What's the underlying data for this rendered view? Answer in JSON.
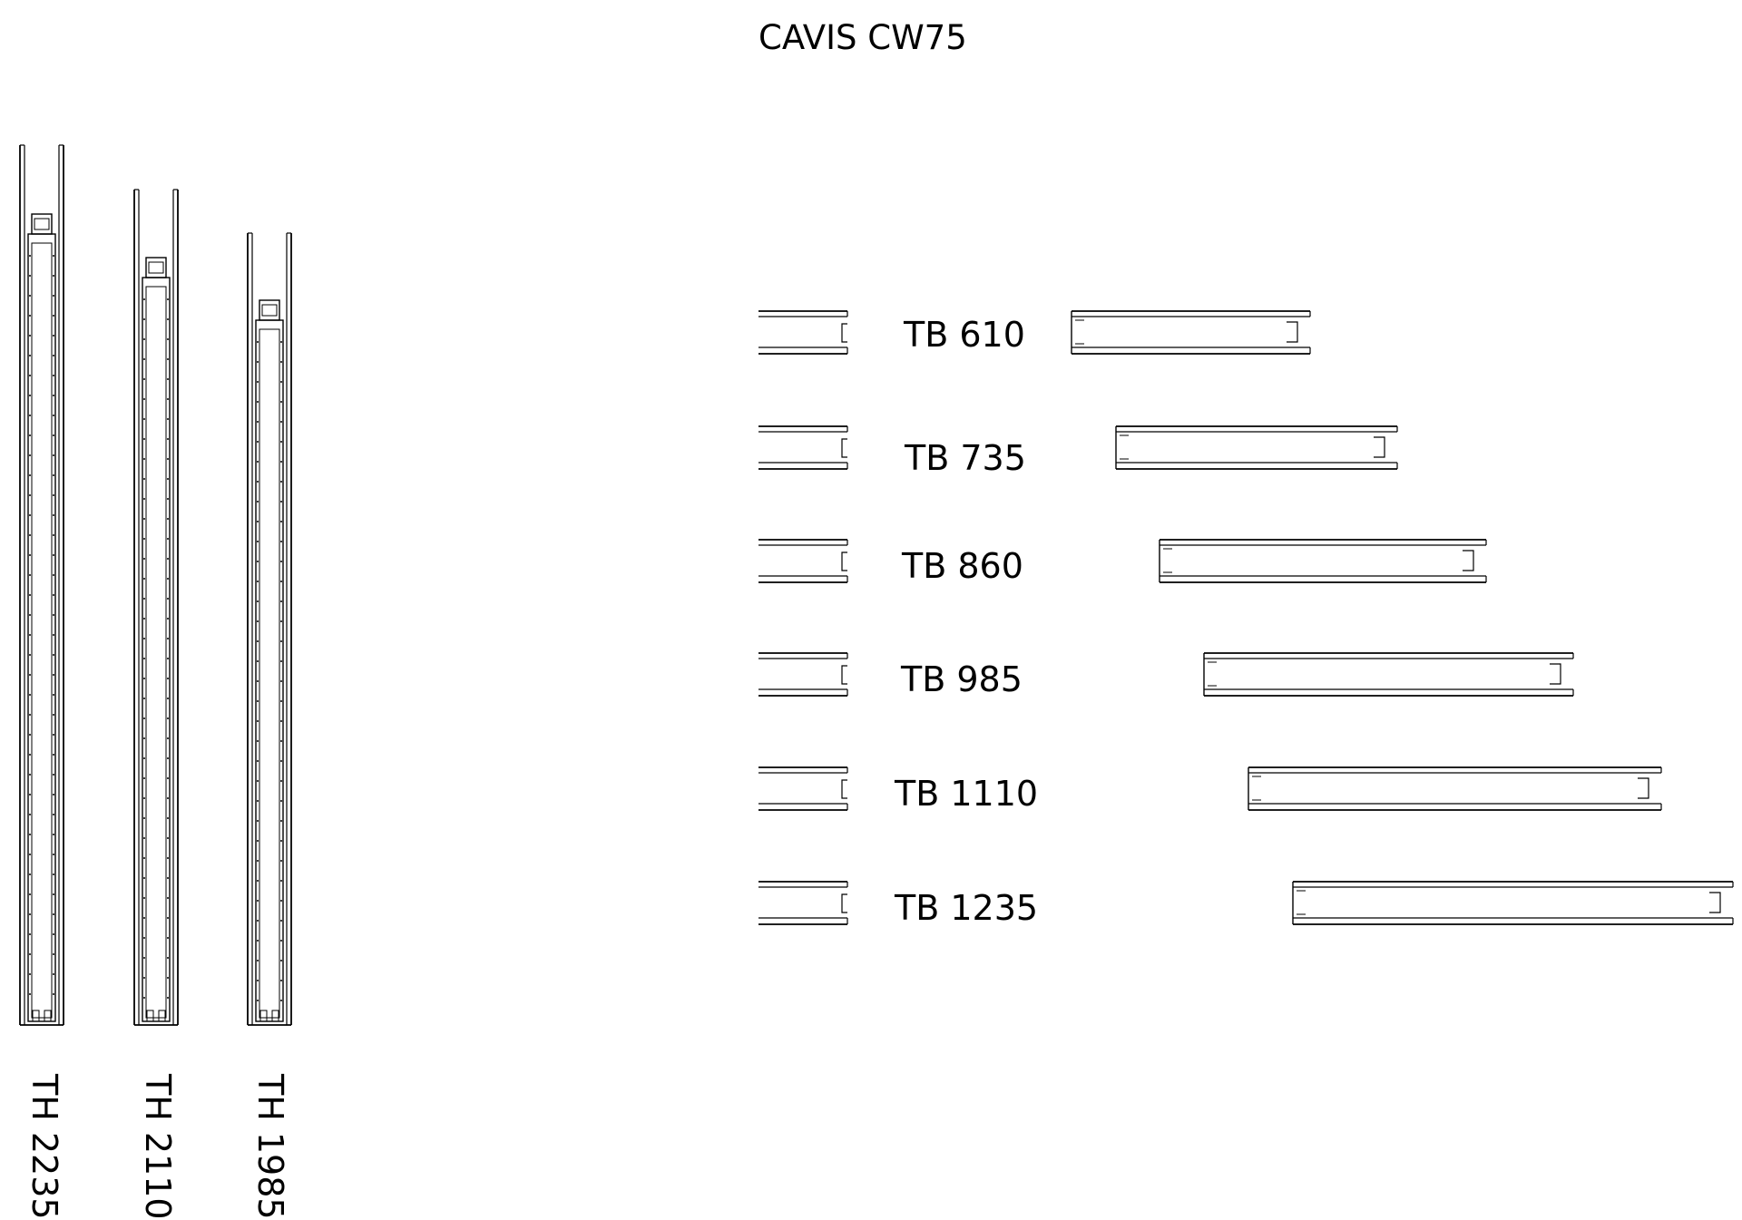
{
  "title": "CAVIS CW75",
  "vertical_profiles": [
    {
      "label": "TH 2235"
    },
    {
      "label": "TH 2110"
    },
    {
      "label": "TH 1985"
    }
  ],
  "horizontal_profiles": [
    {
      "label": "TB 610"
    },
    {
      "label": "TB 735"
    },
    {
      "label": "TB 860"
    },
    {
      "label": "TB 985"
    },
    {
      "label": "TB 1110"
    },
    {
      "label": "TB 1235"
    }
  ],
  "colors": {
    "line": "#000000",
    "background": "#ffffff"
  }
}
